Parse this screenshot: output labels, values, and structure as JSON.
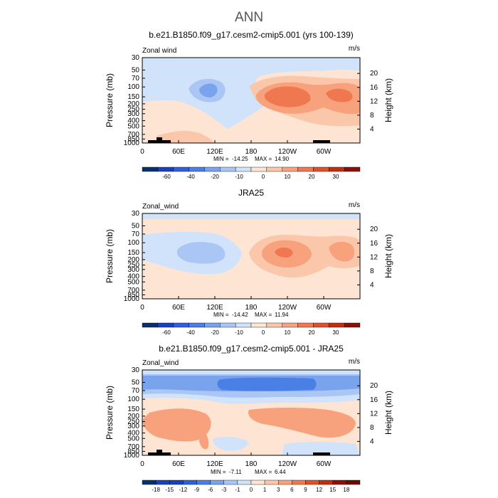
{
  "page_title": "ANN",
  "palette": {
    "neg": [
      "#08306b",
      "#1a3fbf",
      "#2d5fdf",
      "#4a7fe6",
      "#7aa3ee",
      "#a9c6f5",
      "#d0e3fa"
    ],
    "pos": [
      "#fde4d3",
      "#fbc7ab",
      "#f7a27c",
      "#f07850",
      "#e05029",
      "#c12e10",
      "#8c1006"
    ]
  },
  "chart_data": [
    {
      "type": "heatmap",
      "title": "b.e21.B1850.f09_g17.cesm2-cmip5.001 (yrs 100-139)",
      "variable": "Zonal wind",
      "units": "m/s",
      "xlabel": "",
      "ylabel": "Pressure (mb)",
      "ylabel_right": "Height (km)",
      "x_tick_labels": [
        "0",
        "60E",
        "120E",
        "180",
        "120W",
        "60W"
      ],
      "y_tick_labels": [
        "30",
        "50",
        "70",
        "100",
        "150",
        "200",
        "250",
        "300",
        "400",
        "500",
        "700",
        "850",
        "1000"
      ],
      "height_tick_labels": [
        "20",
        "16",
        "12",
        "8",
        "4"
      ],
      "stats": {
        "min_label": "MIN =",
        "min": "-14.25",
        "max_label": "MAX =",
        "max": "14.90"
      },
      "colorbar_labels": [
        "-60",
        "-40",
        "-20",
        "-10",
        "0",
        "10",
        "20",
        "30"
      ],
      "colorbar_levels": 14,
      "xlim": [
        0,
        360
      ],
      "ylim": [
        1000,
        30
      ],
      "values_summary": {
        "min": -14.25,
        "max": 14.9
      }
    },
    {
      "type": "heatmap",
      "title": "JRA25",
      "variable": "Zonal_wind",
      "units": "m/s",
      "xlabel": "",
      "ylabel": "Pressure (mb)",
      "ylabel_right": "Height (km)",
      "x_tick_labels": [
        "0",
        "60E",
        "120E",
        "180",
        "120W",
        "60W"
      ],
      "y_tick_labels": [
        "30",
        "50",
        "70",
        "100",
        "150",
        "200",
        "250",
        "300",
        "400",
        "500",
        "700",
        "850",
        "1000"
      ],
      "height_tick_labels": [
        "20",
        "16",
        "12",
        "8",
        "4"
      ],
      "stats": {
        "min_label": "MIN =",
        "min": "-14.42",
        "max_label": "MAX =",
        "max": "11.94"
      },
      "colorbar_labels": [
        "-60",
        "-40",
        "-20",
        "-10",
        "0",
        "10",
        "20",
        "30"
      ],
      "colorbar_levels": 14,
      "xlim": [
        0,
        360
      ],
      "ylim": [
        1000,
        30
      ],
      "values_summary": {
        "min": -14.42,
        "max": 11.94
      }
    },
    {
      "type": "heatmap",
      "title": "b.e21.B1850.f09_g17.cesm2-cmip5.001 - JRA25",
      "variable": "Zonal_wind",
      "units": "m/s",
      "xlabel": "",
      "ylabel": "Pressure (mb)",
      "ylabel_right": "Height (km)",
      "x_tick_labels": [
        "0",
        "60E",
        "120E",
        "180",
        "120W",
        "60W"
      ],
      "y_tick_labels": [
        "30",
        "50",
        "70",
        "100",
        "150",
        "200",
        "250",
        "300",
        "400",
        "500",
        "700",
        "850",
        "1000"
      ],
      "height_tick_labels": [
        "20",
        "16",
        "12",
        "8",
        "4"
      ],
      "stats": {
        "min_label": "MIN =",
        "min": "-7.11",
        "max_label": "MAX =",
        "max": "6.44"
      },
      "colorbar_labels": [
        "-18",
        "-15",
        "-12",
        "-9",
        "-6",
        "-3",
        "-1",
        "0",
        "1",
        "3",
        "6",
        "9",
        "12",
        "15",
        "18"
      ],
      "colorbar_levels": 16,
      "xlim": [
        0,
        360
      ],
      "ylim": [
        1000,
        30
      ],
      "values_summary": {
        "min": -7.11,
        "max": 6.44
      }
    }
  ]
}
